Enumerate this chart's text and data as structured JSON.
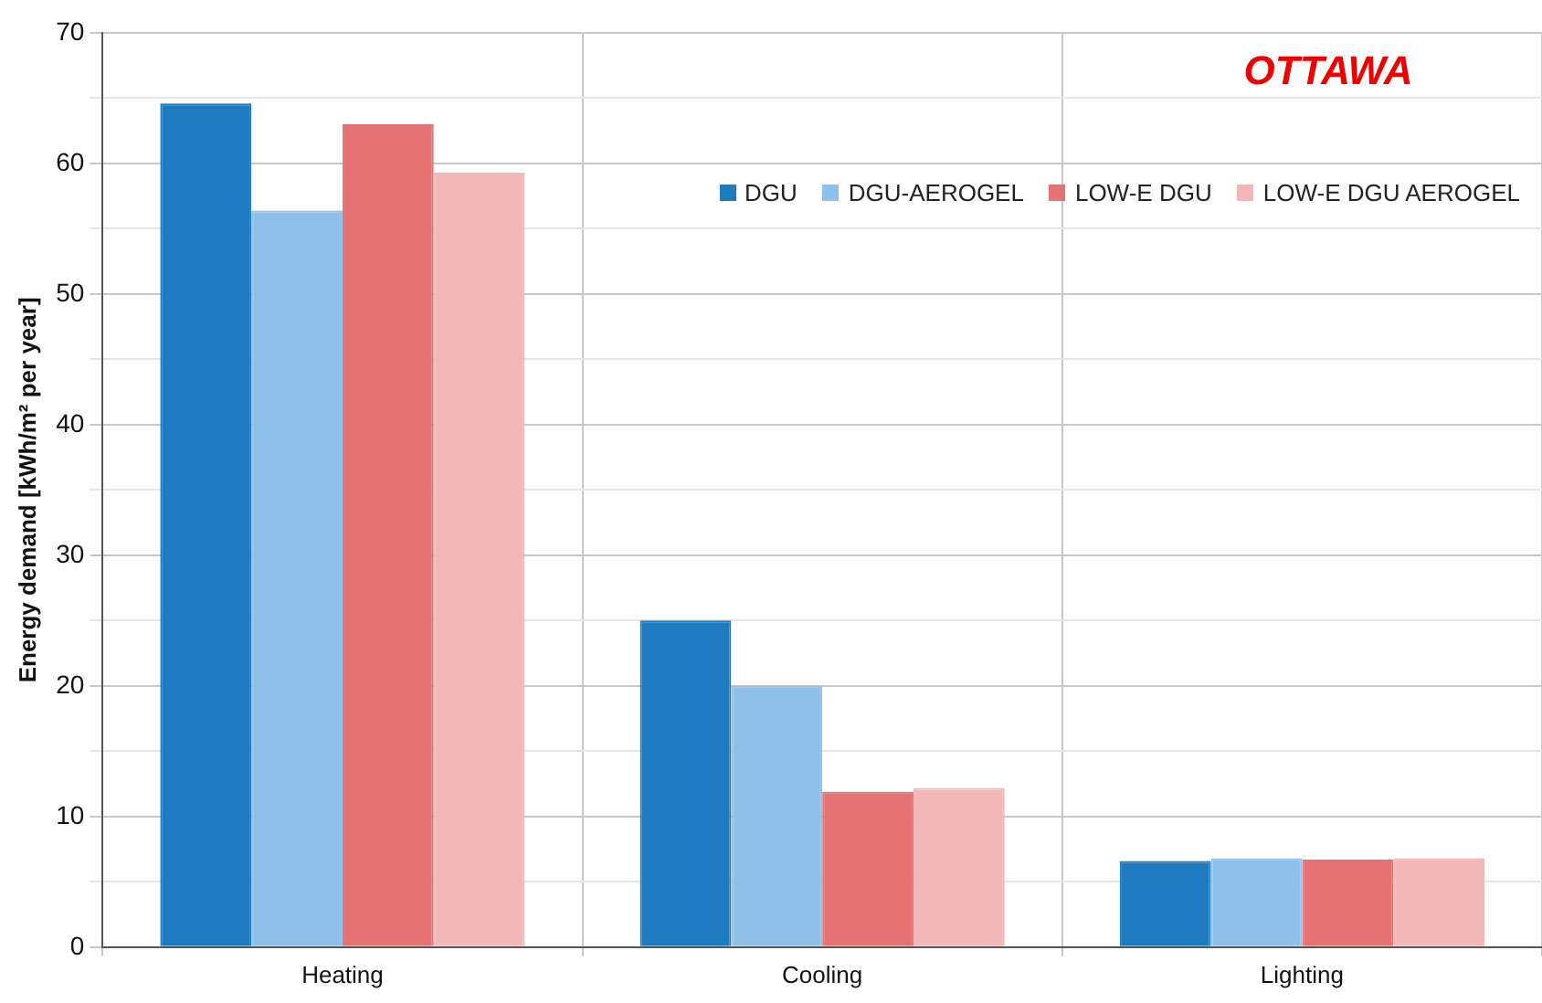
{
  "chart_data": {
    "type": "bar",
    "title": "OTTAWA",
    "ylabel": "Energy demand [kWh/m² per year]",
    "categories": [
      "Heating",
      "Cooling",
      "Lighting"
    ],
    "series": [
      {
        "name": "DGU",
        "color": "#1f7bc0",
        "values": [
          64.6,
          25.0,
          6.6
        ]
      },
      {
        "name": "DGU-AEROGEL",
        "color": "#8fc0ea",
        "values": [
          56.4,
          20.0,
          6.8
        ]
      },
      {
        "name": "LOW-E DGU",
        "color": "#e57373",
        "values": [
          63.0,
          11.9,
          6.7
        ]
      },
      {
        "name": "LOW-E DGU AEROGEL",
        "color": "#f2b8b8",
        "values": [
          59.3,
          12.2,
          6.8
        ]
      }
    ],
    "ylim": [
      0,
      70
    ],
    "yticks": [
      0,
      {
        "value": 5,
        "label": null
      },
      10,
      {
        "value": 15,
        "label": null
      },
      20,
      {
        "value": 25,
        "label": null
      },
      30,
      {
        "value": 35,
        "label": null
      },
      40,
      {
        "value": 45,
        "label": null
      },
      50,
      {
        "value": 55,
        "label": null
      },
      60,
      {
        "value": 65,
        "label": null
      },
      70
    ],
    "grid": true,
    "legend": "top right"
  }
}
